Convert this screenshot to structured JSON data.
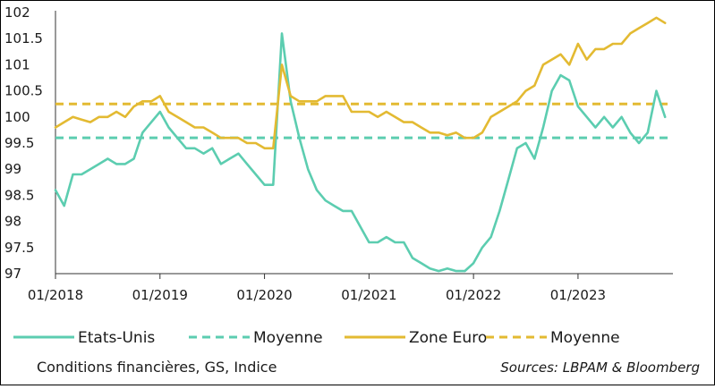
{
  "chart_data": {
    "type": "line",
    "yticks": [
      "102",
      "101.5",
      "101",
      "100.5",
      "100",
      "99.5",
      "99",
      "98.5",
      "98",
      "97.5",
      "97"
    ],
    "xticks": [
      "01/2018",
      "01/2019",
      "01/2020",
      "01/2021",
      "01/2022",
      "01/2023"
    ],
    "ylim": [
      97,
      102
    ],
    "xlim": [
      "2018-01",
      "2023-11"
    ],
    "grid": false,
    "legend_position": "bottom",
    "series": [
      {
        "name": "Etats-Unis",
        "color": "#5ccdb0",
        "style": "solid",
        "points": [
          [
            "2018-01",
            98.6
          ],
          [
            "2018-02",
            98.3
          ],
          [
            "2018-03",
            98.9
          ],
          [
            "2018-04",
            98.9
          ],
          [
            "2018-05",
            99.0
          ],
          [
            "2018-06",
            99.1
          ],
          [
            "2018-07",
            99.2
          ],
          [
            "2018-08",
            99.1
          ],
          [
            "2018-09",
            99.1
          ],
          [
            "2018-10",
            99.2
          ],
          [
            "2018-11",
            99.7
          ],
          [
            "2018-12",
            99.9
          ],
          [
            "2019-01",
            100.1
          ],
          [
            "2019-02",
            99.8
          ],
          [
            "2019-03",
            99.6
          ],
          [
            "2019-04",
            99.4
          ],
          [
            "2019-05",
            99.4
          ],
          [
            "2019-06",
            99.3
          ],
          [
            "2019-07",
            99.4
          ],
          [
            "2019-08",
            99.1
          ],
          [
            "2019-09",
            99.2
          ],
          [
            "2019-10",
            99.3
          ],
          [
            "2019-11",
            99.1
          ],
          [
            "2019-12",
            98.9
          ],
          [
            "2020-01",
            98.7
          ],
          [
            "2020-02",
            98.7
          ],
          [
            "2020-03",
            101.6
          ],
          [
            "2020-04",
            100.3
          ],
          [
            "2020-05",
            99.6
          ],
          [
            "2020-06",
            99.0
          ],
          [
            "2020-07",
            98.6
          ],
          [
            "2020-08",
            98.4
          ],
          [
            "2020-09",
            98.3
          ],
          [
            "2020-10",
            98.2
          ],
          [
            "2020-11",
            98.2
          ],
          [
            "2020-12",
            97.9
          ],
          [
            "2021-01",
            97.6
          ],
          [
            "2021-02",
            97.6
          ],
          [
            "2021-03",
            97.7
          ],
          [
            "2021-04",
            97.6
          ],
          [
            "2021-05",
            97.6
          ],
          [
            "2021-06",
            97.3
          ],
          [
            "2021-07",
            97.2
          ],
          [
            "2021-08",
            97.1
          ],
          [
            "2021-09",
            97.05
          ],
          [
            "2021-10",
            97.1
          ],
          [
            "2021-11",
            97.05
          ],
          [
            "2021-12",
            97.05
          ],
          [
            "2022-01",
            97.2
          ],
          [
            "2022-02",
            97.5
          ],
          [
            "2022-03",
            97.7
          ],
          [
            "2022-04",
            98.2
          ],
          [
            "2022-05",
            98.8
          ],
          [
            "2022-06",
            99.4
          ],
          [
            "2022-07",
            99.5
          ],
          [
            "2022-08",
            99.2
          ],
          [
            "2022-09",
            99.8
          ],
          [
            "2022-10",
            100.5
          ],
          [
            "2022-11",
            100.8
          ],
          [
            "2022-12",
            100.7
          ],
          [
            "2023-01",
            100.2
          ],
          [
            "2023-02",
            100.0
          ],
          [
            "2023-03",
            99.8
          ],
          [
            "2023-04",
            100.0
          ],
          [
            "2023-05",
            99.8
          ],
          [
            "2023-06",
            100.0
          ],
          [
            "2023-07",
            99.7
          ],
          [
            "2023-08",
            99.5
          ],
          [
            "2023-09",
            99.7
          ],
          [
            "2023-10",
            100.5
          ],
          [
            "2023-11",
            100.0
          ]
        ]
      },
      {
        "name": "Moyenne",
        "color": "#5ccdb0",
        "style": "dashed",
        "value": 99.6
      },
      {
        "name": "Zone Euro",
        "color": "#e3ba32",
        "style": "solid",
        "points": [
          [
            "2018-01",
            99.8
          ],
          [
            "2018-02",
            99.9
          ],
          [
            "2018-03",
            100.0
          ],
          [
            "2018-04",
            99.95
          ],
          [
            "2018-05",
            99.9
          ],
          [
            "2018-06",
            100.0
          ],
          [
            "2018-07",
            100.0
          ],
          [
            "2018-08",
            100.1
          ],
          [
            "2018-09",
            100.0
          ],
          [
            "2018-10",
            100.2
          ],
          [
            "2018-11",
            100.3
          ],
          [
            "2018-12",
            100.3
          ],
          [
            "2019-01",
            100.4
          ],
          [
            "2019-02",
            100.1
          ],
          [
            "2019-03",
            100.0
          ],
          [
            "2019-04",
            99.9
          ],
          [
            "2019-05",
            99.8
          ],
          [
            "2019-06",
            99.8
          ],
          [
            "2019-07",
            99.7
          ],
          [
            "2019-08",
            99.6
          ],
          [
            "2019-09",
            99.6
          ],
          [
            "2019-10",
            99.6
          ],
          [
            "2019-11",
            99.5
          ],
          [
            "2019-12",
            99.5
          ],
          [
            "2020-01",
            99.4
          ],
          [
            "2020-02",
            99.4
          ],
          [
            "2020-03",
            101.0
          ],
          [
            "2020-04",
            100.4
          ],
          [
            "2020-05",
            100.3
          ],
          [
            "2020-06",
            100.3
          ],
          [
            "2020-07",
            100.3
          ],
          [
            "2020-08",
            100.4
          ],
          [
            "2020-09",
            100.4
          ],
          [
            "2020-10",
            100.4
          ],
          [
            "2020-11",
            100.1
          ],
          [
            "2020-12",
            100.1
          ],
          [
            "2021-01",
            100.1
          ],
          [
            "2021-02",
            100.0
          ],
          [
            "2021-03",
            100.1
          ],
          [
            "2021-04",
            100.0
          ],
          [
            "2021-05",
            99.9
          ],
          [
            "2021-06",
            99.9
          ],
          [
            "2021-07",
            99.8
          ],
          [
            "2021-08",
            99.7
          ],
          [
            "2021-09",
            99.7
          ],
          [
            "2021-10",
            99.65
          ],
          [
            "2021-11",
            99.7
          ],
          [
            "2021-12",
            99.6
          ],
          [
            "2022-01",
            99.6
          ],
          [
            "2022-02",
            99.7
          ],
          [
            "2022-03",
            100.0
          ],
          [
            "2022-04",
            100.1
          ],
          [
            "2022-05",
            100.2
          ],
          [
            "2022-06",
            100.3
          ],
          [
            "2022-07",
            100.5
          ],
          [
            "2022-08",
            100.6
          ],
          [
            "2022-09",
            101.0
          ],
          [
            "2022-10",
            101.1
          ],
          [
            "2022-11",
            101.2
          ],
          [
            "2022-12",
            101.0
          ],
          [
            "2023-01",
            101.4
          ],
          [
            "2023-02",
            101.1
          ],
          [
            "2023-03",
            101.3
          ],
          [
            "2023-04",
            101.3
          ],
          [
            "2023-05",
            101.4
          ],
          [
            "2023-06",
            101.4
          ],
          [
            "2023-07",
            101.6
          ],
          [
            "2023-08",
            101.7
          ],
          [
            "2023-09",
            101.8
          ],
          [
            "2023-10",
            101.9
          ],
          [
            "2023-11",
            101.8
          ]
        ]
      },
      {
        "name": "Moyenne",
        "color": "#e3ba32",
        "style": "dashed",
        "value": 100.25
      }
    ],
    "caption": "Conditions financières, GS, Indice",
    "source": "Sources: LBPAM & Bloomberg"
  }
}
